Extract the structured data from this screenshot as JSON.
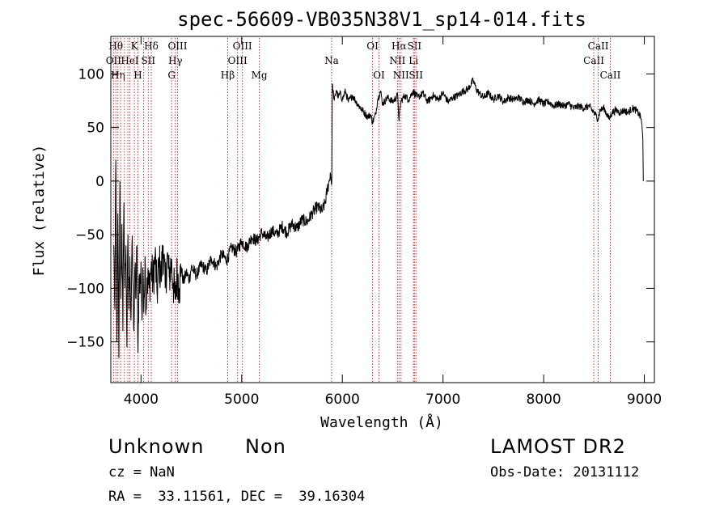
{
  "chart_data": {
    "type": "line",
    "title": "spec-56609-VB035N38V1_sp14-014.fits",
    "xlabel": "Wavelength (Å)",
    "ylabel": "Flux (relative)",
    "xlim": [
      3700,
      9100
    ],
    "ylim": [
      -188,
      135
    ],
    "x_ticks": [
      4000,
      5000,
      6000,
      7000,
      8000,
      9000
    ],
    "y_ticks": [
      -150,
      -100,
      -50,
      0,
      50,
      100
    ],
    "line_color": "#000000",
    "marker_color": "#cc3333",
    "grid": false,
    "series": [
      {
        "points": [
          [
            3730,
            -60
          ],
          [
            3740,
            -120
          ],
          [
            3750,
            20
          ],
          [
            3760,
            -150
          ],
          [
            3770,
            -30
          ],
          [
            3780,
            -165
          ],
          [
            3790,
            0
          ],
          [
            3800,
            -110
          ],
          [
            3810,
            -40
          ],
          [
            3820,
            -140
          ],
          [
            3830,
            -20
          ],
          [
            3840,
            -100
          ],
          [
            3850,
            -60
          ],
          [
            3860,
            -155
          ],
          [
            3870,
            -50
          ],
          [
            3880,
            -120
          ],
          [
            3890,
            -70
          ],
          [
            3900,
            -130
          ],
          [
            3910,
            -60
          ],
          [
            3920,
            -95
          ],
          [
            3930,
            -140
          ],
          [
            3940,
            -80
          ],
          [
            3950,
            -110
          ],
          [
            3960,
            -60
          ],
          [
            3970,
            -160
          ],
          [
            3980,
            -90
          ],
          [
            3990,
            -105
          ],
          [
            4000,
            -75
          ],
          [
            4010,
            -130
          ],
          [
            4020,
            -85
          ],
          [
            4030,
            -110
          ],
          [
            4040,
            -70
          ],
          [
            4050,
            -120
          ],
          [
            4060,
            -90
          ],
          [
            4080,
            -100
          ],
          [
            4100,
            -80
          ],
          [
            4120,
            -95
          ],
          [
            4140,
            -70
          ],
          [
            4160,
            -105
          ],
          [
            4180,
            -75
          ],
          [
            4200,
            -90
          ],
          [
            4220,
            -60
          ],
          [
            4240,
            -100
          ],
          [
            4260,
            -70
          ],
          [
            4280,
            -90
          ],
          [
            4300,
            -75
          ],
          [
            4320,
            -95
          ],
          [
            4340,
            -110
          ],
          [
            4360,
            -85
          ],
          [
            4380,
            -100
          ],
          [
            4400,
            -80
          ],
          [
            4420,
            -95
          ],
          [
            4450,
            -85
          ],
          [
            4480,
            -92
          ],
          [
            4500,
            -80
          ],
          [
            4550,
            -88
          ],
          [
            4600,
            -78
          ],
          [
            4650,
            -84
          ],
          [
            4700,
            -72
          ],
          [
            4750,
            -80
          ],
          [
            4800,
            -68
          ],
          [
            4850,
            -74
          ],
          [
            4900,
            -62
          ],
          [
            4950,
            -66
          ],
          [
            5000,
            -56
          ],
          [
            5050,
            -62
          ],
          [
            5100,
            -52
          ],
          [
            5150,
            -56
          ],
          [
            5200,
            -48
          ],
          [
            5250,
            -54
          ],
          [
            5300,
            -46
          ],
          [
            5350,
            -50
          ],
          [
            5400,
            -42
          ],
          [
            5450,
            -48
          ],
          [
            5500,
            -40
          ],
          [
            5550,
            -44
          ],
          [
            5600,
            -36
          ],
          [
            5650,
            -38
          ],
          [
            5700,
            -30
          ],
          [
            5750,
            -24
          ],
          [
            5800,
            -28
          ],
          [
            5830,
            -20
          ],
          [
            5850,
            -8
          ],
          [
            5870,
            0
          ],
          [
            5880,
            8
          ],
          [
            5895,
            -2
          ],
          [
            5900,
            90
          ],
          [
            5920,
            75
          ],
          [
            5940,
            85
          ],
          [
            5960,
            78
          ],
          [
            5980,
            82
          ],
          [
            6000,
            76
          ],
          [
            6030,
            84
          ],
          [
            6060,
            74
          ],
          [
            6100,
            80
          ],
          [
            6150,
            72
          ],
          [
            6200,
            66
          ],
          [
            6250,
            60
          ],
          [
            6280,
            62
          ],
          [
            6300,
            55
          ],
          [
            6330,
            62
          ],
          [
            6350,
            76
          ],
          [
            6380,
            84
          ],
          [
            6400,
            72
          ],
          [
            6450,
            78
          ],
          [
            6500,
            74
          ],
          [
            6550,
            80
          ],
          [
            6563,
            56
          ],
          [
            6580,
            74
          ],
          [
            6620,
            80
          ],
          [
            6660,
            76
          ],
          [
            6700,
            84
          ],
          [
            6750,
            78
          ],
          [
            6800,
            82
          ],
          [
            6850,
            74
          ],
          [
            6900,
            80
          ],
          [
            6950,
            76
          ],
          [
            7000,
            82
          ],
          [
            7050,
            74
          ],
          [
            7100,
            78
          ],
          [
            7150,
            80
          ],
          [
            7200,
            84
          ],
          [
            7250,
            86
          ],
          [
            7300,
            94
          ],
          [
            7330,
            86
          ],
          [
            7360,
            82
          ],
          [
            7400,
            78
          ],
          [
            7450,
            82
          ],
          [
            7500,
            76
          ],
          [
            7550,
            80
          ],
          [
            7600,
            74
          ],
          [
            7650,
            78
          ],
          [
            7700,
            76
          ],
          [
            7750,
            78
          ],
          [
            7800,
            74
          ],
          [
            7850,
            76
          ],
          [
            7900,
            72
          ],
          [
            7950,
            76
          ],
          [
            8000,
            72
          ],
          [
            8050,
            74
          ],
          [
            8100,
            70
          ],
          [
            8150,
            72
          ],
          [
            8200,
            70
          ],
          [
            8250,
            72
          ],
          [
            8300,
            68
          ],
          [
            8350,
            70
          ],
          [
            8400,
            68
          ],
          [
            8450,
            70
          ],
          [
            8500,
            64
          ],
          [
            8540,
            58
          ],
          [
            8560,
            66
          ],
          [
            8600,
            68
          ],
          [
            8650,
            58
          ],
          [
            8680,
            64
          ],
          [
            8720,
            66
          ],
          [
            8760,
            64
          ],
          [
            8800,
            66
          ],
          [
            8840,
            64
          ],
          [
            8880,
            68
          ],
          [
            8920,
            66
          ],
          [
            8950,
            62
          ],
          [
            8970,
            58
          ],
          [
            8985,
            40
          ],
          [
            8990,
            0
          ]
        ]
      }
    ],
    "line_markers": [
      {
        "x": 3750,
        "label": "Hθ",
        "row": 0
      },
      {
        "x": 3727,
        "label": "OII",
        "row": 1
      },
      {
        "x": 3771,
        "label": "Hη",
        "row": 2
      },
      {
        "x": 3798,
        "label": "",
        "row": 0
      },
      {
        "x": 3835,
        "label": "",
        "row": 0
      },
      {
        "x": 3869,
        "label": "",
        "row": 0
      },
      {
        "x": 3889,
        "label": "HeI",
        "row": 1
      },
      {
        "x": 3934,
        "label": "K",
        "row": 0
      },
      {
        "x": 3969,
        "label": "H",
        "row": 2
      },
      {
        "x": 4026,
        "label": "",
        "row": 0
      },
      {
        "x": 4072,
        "label": "SII",
        "row": 1
      },
      {
        "x": 4102,
        "label": "Hδ",
        "row": 0
      },
      {
        "x": 4304,
        "label": "G",
        "row": 2
      },
      {
        "x": 4341,
        "label": "Hγ",
        "row": 1
      },
      {
        "x": 4363,
        "label": "OIII",
        "row": 0
      },
      {
        "x": 4861,
        "label": "Hβ",
        "row": 2
      },
      {
        "x": 4959,
        "label": "OIII",
        "row": 1
      },
      {
        "x": 5007,
        "label": "OIII",
        "row": 0
      },
      {
        "x": 5175,
        "label": "Mg",
        "row": 2
      },
      {
        "x": 5893,
        "label": "Na",
        "row": 1
      },
      {
        "x": 6300,
        "label": "OI",
        "row": 0
      },
      {
        "x": 6364,
        "label": "OI",
        "row": 2
      },
      {
        "x": 6548,
        "label": "NII",
        "row": 1
      },
      {
        "x": 6563,
        "label": "Hα",
        "row": 0
      },
      {
        "x": 6583,
        "label": "NII",
        "row": 2
      },
      {
        "x": 6707,
        "label": "Li",
        "row": 1
      },
      {
        "x": 6716,
        "label": "SII",
        "row": 0
      },
      {
        "x": 6731,
        "label": "SII",
        "row": 2
      },
      {
        "x": 8498,
        "label": "CaII",
        "row": 1
      },
      {
        "x": 8542,
        "label": "CaII",
        "row": 0
      },
      {
        "x": 8662,
        "label": "CaII",
        "row": 2
      }
    ]
  },
  "info": {
    "object_class": "Unknown",
    "subclass": "Non",
    "survey": "LAMOST DR2",
    "cz": "cz = NaN",
    "obs_date": "Obs-Date: 20131112",
    "coords": "RA =  33.11561, DEC =  39.16304"
  }
}
